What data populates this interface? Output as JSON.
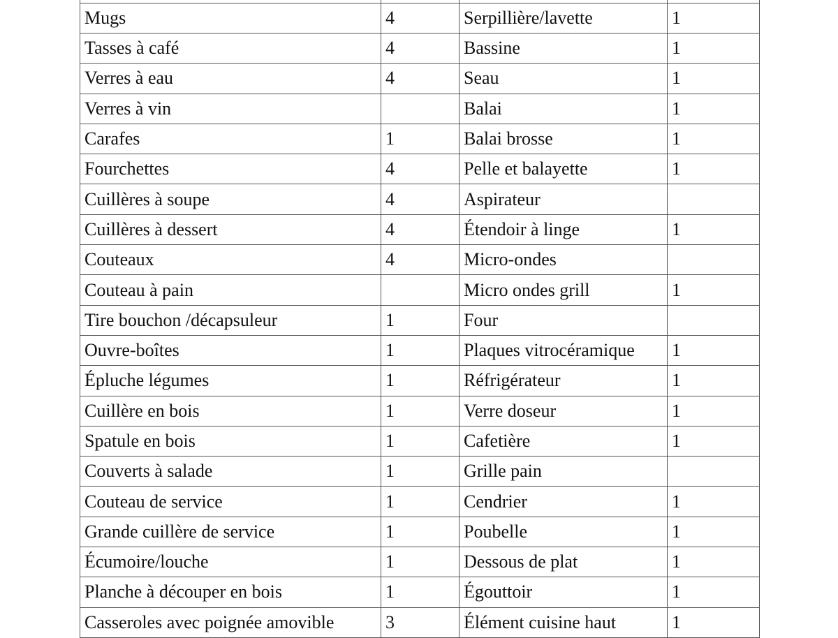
{
  "rows": [
    [
      "Mugs",
      "4",
      "Serpillière/lavette",
      "1"
    ],
    [
      "Tasses à café",
      "4",
      "Bassine",
      "1"
    ],
    [
      "Verres à eau",
      "4",
      "Seau",
      "1"
    ],
    [
      "Verres à vin",
      "",
      "Balai",
      "1"
    ],
    [
      "Carafes",
      "1",
      "Balai brosse",
      "1"
    ],
    [
      "Fourchettes",
      "4",
      "Pelle et balayette",
      "1"
    ],
    [
      "Cuillères à soupe",
      "4",
      "Aspirateur",
      ""
    ],
    [
      "Cuillères à dessert",
      "4",
      "Étendoir à linge",
      "1"
    ],
    [
      "Couteaux",
      "4",
      "Micro-ondes",
      ""
    ],
    [
      "Couteau à pain",
      "",
      "Micro ondes grill",
      "1"
    ],
    [
      "Tire bouchon /décapsuleur",
      "1",
      "Four",
      ""
    ],
    [
      "Ouvre-boîtes",
      "1",
      "Plaques vitrocéramique",
      "1"
    ],
    [
      "Épluche légumes",
      "1",
      "Réfrigérateur",
      "1"
    ],
    [
      "Cuillère en bois",
      "1",
      "Verre doseur",
      "1"
    ],
    [
      "Spatule en bois",
      "1",
      "Cafetière",
      "1"
    ],
    [
      "Couverts à salade",
      "1",
      "Grille pain",
      ""
    ],
    [
      "Couteau de service",
      "1",
      "Cendrier",
      "1"
    ],
    [
      "Grande cuillère de service",
      "1",
      "Poubelle",
      "1"
    ],
    [
      "Écumoire/louche",
      "1",
      "Dessous de plat",
      "1"
    ],
    [
      "Planche à découper en bois",
      "1",
      "Égouttoir",
      "1"
    ],
    [
      "Casseroles avec poignée amovible",
      "3",
      "Élément cuisine haut",
      "1"
    ]
  ]
}
